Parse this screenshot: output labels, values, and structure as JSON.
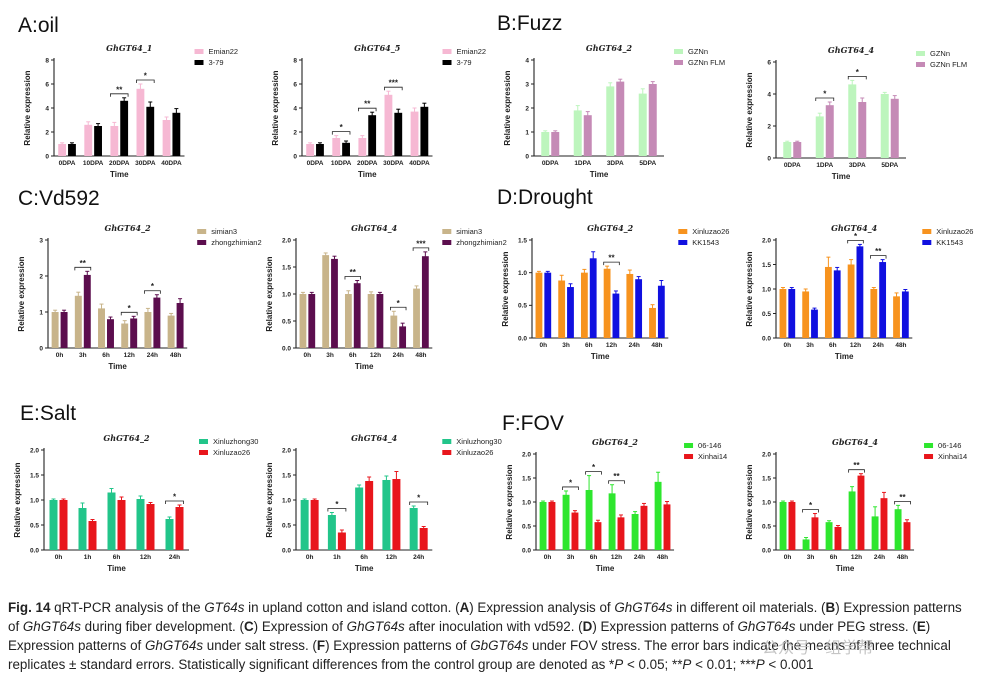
{
  "panels": [
    {
      "key": "A",
      "label": "A:oil"
    },
    {
      "key": "B",
      "label": "B:Fuzz"
    },
    {
      "key": "C",
      "label": "C:Vd592"
    },
    {
      "key": "D",
      "label": "D:Drought"
    },
    {
      "key": "E",
      "label": "E:Salt"
    },
    {
      "key": "F",
      "label": "F:FOV"
    }
  ],
  "colors": {
    "A_s1": "#F6B8D3",
    "A_s2": "#000000",
    "B_s1": "#BDF5BD",
    "B_s2": "#C58AB6",
    "C_s1": "#C8B48A",
    "C_s2": "#5C0E4E",
    "D_s1": "#F7931E",
    "D_s2": "#1010E0",
    "E_s1": "#22C58A",
    "E_s2": "#E8161C",
    "F_s1": "#2EE62E",
    "F_s2": "#E8161C"
  },
  "chart_data": [
    {
      "id": "A1",
      "type": "bar",
      "title": "GhGT64_1",
      "xlabel": "Time",
      "ylabel": "Relative expression",
      "ylim": [
        0,
        8
      ],
      "yticks": [
        "0",
        "2",
        "4",
        "6",
        "8"
      ],
      "categories": [
        "0DPA",
        "10DPA",
        "20DPA",
        "30DPA",
        "40DPA"
      ],
      "series": [
        {
          "name": "Emian22",
          "values": [
            1.0,
            2.6,
            2.5,
            5.6,
            3.0
          ],
          "errors": [
            0.1,
            0.25,
            0.3,
            0.4,
            0.25
          ]
        },
        {
          "name": "3-79",
          "values": [
            1.0,
            2.5,
            4.6,
            4.1,
            3.6
          ],
          "errors": [
            0.1,
            0.2,
            0.25,
            0.4,
            0.35
          ]
        }
      ],
      "significance": [
        {
          "cat": 2,
          "label": "**"
        },
        {
          "cat": 3,
          "label": "*"
        }
      ]
    },
    {
      "id": "A2",
      "type": "bar",
      "title": "GhGT64_5",
      "xlabel": "Time",
      "ylabel": "Relative expression",
      "ylim": [
        0,
        8
      ],
      "yticks": [
        "0",
        "2",
        "4",
        "6",
        "8"
      ],
      "categories": [
        "0DPA",
        "10DPA",
        "20DPA",
        "30DPA",
        "40DPA"
      ],
      "series": [
        {
          "name": "Emian22",
          "values": [
            1.0,
            1.5,
            1.5,
            5.1,
            3.7
          ],
          "errors": [
            0.1,
            0.2,
            0.2,
            0.3,
            0.3
          ]
        },
        {
          "name": "3-79",
          "values": [
            1.0,
            1.1,
            3.4,
            3.6,
            4.1
          ],
          "errors": [
            0.1,
            0.15,
            0.25,
            0.3,
            0.3
          ]
        }
      ],
      "significance": [
        {
          "cat": 1,
          "label": "*"
        },
        {
          "cat": 2,
          "label": "**"
        },
        {
          "cat": 3,
          "label": "***"
        }
      ]
    },
    {
      "id": "B1",
      "type": "bar",
      "title": "GhGT64_2",
      "xlabel": "Time",
      "ylabel": "Relative expression",
      "ylim": [
        0,
        4
      ],
      "yticks": [
        "0",
        "1",
        "2",
        "3",
        "4"
      ],
      "categories": [
        "0DPA",
        "1DPA",
        "3DPA",
        "5DPA"
      ],
      "series": [
        {
          "name": "GZNn",
          "values": [
            1.0,
            1.9,
            2.9,
            2.6
          ],
          "errors": [
            0.05,
            0.2,
            0.15,
            0.2
          ]
        },
        {
          "name": "GZNn FLM",
          "values": [
            1.0,
            1.7,
            3.1,
            3.0
          ],
          "errors": [
            0.05,
            0.15,
            0.1,
            0.1
          ]
        }
      ],
      "significance": []
    },
    {
      "id": "B2",
      "type": "bar",
      "title": "GhGT64_4",
      "xlabel": "Time",
      "ylabel": "Relative expression",
      "ylim": [
        0,
        6
      ],
      "yticks": [
        "0",
        "2",
        "4",
        "6"
      ],
      "categories": [
        "0DPA",
        "1DPA",
        "3DPA",
        "5DPA"
      ],
      "series": [
        {
          "name": "GZNn",
          "values": [
            1.0,
            2.6,
            4.6,
            4.0
          ],
          "errors": [
            0.05,
            0.2,
            0.25,
            0.1
          ]
        },
        {
          "name": "GZNn FLM",
          "values": [
            1.0,
            3.3,
            3.5,
            3.7
          ],
          "errors": [
            0.05,
            0.2,
            0.25,
            0.2
          ]
        }
      ],
      "significance": [
        {
          "cat": 1,
          "label": "*"
        },
        {
          "cat": 2,
          "label": "*"
        }
      ]
    },
    {
      "id": "C1",
      "type": "bar",
      "title": "GhGT64_2",
      "xlabel": "Time",
      "ylabel": "Relative expression",
      "ylim": [
        0,
        3
      ],
      "yticks": [
        "0",
        "1",
        "2",
        "3"
      ],
      "categories": [
        "0h",
        "3h",
        "6h",
        "12h",
        "24h",
        "48h"
      ],
      "series": [
        {
          "name": "simian3",
          "values": [
            1.0,
            1.45,
            1.1,
            0.68,
            1.0,
            0.9
          ],
          "errors": [
            0.05,
            0.1,
            0.12,
            0.08,
            0.1,
            0.06
          ]
        },
        {
          "name": "zhongzhimian2",
          "values": [
            1.0,
            2.03,
            0.8,
            0.82,
            1.4,
            1.25
          ],
          "errors": [
            0.05,
            0.1,
            0.06,
            0.06,
            0.08,
            0.12
          ]
        }
      ],
      "significance": [
        {
          "cat": 1,
          "label": "**"
        },
        {
          "cat": 3,
          "label": "*"
        },
        {
          "cat": 4,
          "label": "*"
        }
      ]
    },
    {
      "id": "C2",
      "type": "bar",
      "title": "GhGT64_4",
      "xlabel": "Time",
      "ylabel": "Relative expression",
      "ylim": [
        0,
        2.0
      ],
      "yticks": [
        "0.0",
        "0.5",
        "1.0",
        "1.5",
        "2.0"
      ],
      "categories": [
        "0h",
        "3h",
        "6h",
        "12h",
        "24h",
        "48h"
      ],
      "series": [
        {
          "name": "simian3",
          "values": [
            1.0,
            1.72,
            1.0,
            1.0,
            0.6,
            1.1
          ],
          "errors": [
            0.03,
            0.04,
            0.06,
            0.04,
            0.08,
            0.05
          ]
        },
        {
          "name": "zhongzhimian2",
          "values": [
            1.0,
            1.65,
            1.2,
            1.0,
            0.4,
            1.7
          ],
          "errors": [
            0.03,
            0.05,
            0.05,
            0.03,
            0.06,
            0.08
          ]
        }
      ],
      "significance": [
        {
          "cat": 2,
          "label": "**"
        },
        {
          "cat": 4,
          "label": "*"
        },
        {
          "cat": 5,
          "label": "***"
        }
      ]
    },
    {
      "id": "D1",
      "type": "bar",
      "title": "GhGT64_2",
      "xlabel": "Time",
      "ylabel": "Relative expression",
      "ylim": [
        0,
        1.5
      ],
      "yticks": [
        "0.0",
        "0.5",
        "1.0",
        "1.5"
      ],
      "categories": [
        "0h",
        "3h",
        "6h",
        "12h",
        "24h",
        "48h"
      ],
      "series": [
        {
          "name": "Xinluzao26",
          "values": [
            1.0,
            0.88,
            1.0,
            1.06,
            0.98,
            0.46
          ],
          "errors": [
            0.02,
            0.08,
            0.05,
            0.04,
            0.06,
            0.05
          ]
        },
        {
          "name": "KK1543",
          "values": [
            1.0,
            0.78,
            1.22,
            0.68,
            0.9,
            0.8
          ],
          "errors": [
            0.02,
            0.05,
            0.1,
            0.04,
            0.04,
            0.08
          ]
        }
      ],
      "significance": [
        {
          "cat": 3,
          "label": "**"
        }
      ]
    },
    {
      "id": "D2",
      "type": "bar",
      "title": "GhGT64_4",
      "xlabel": "Time",
      "ylabel": "Relative expression",
      "ylim": [
        0,
        2.0
      ],
      "yticks": [
        "0.0",
        "0.5",
        "1.0",
        "1.5",
        "2.0"
      ],
      "categories": [
        "0h",
        "3h",
        "6h",
        "12h",
        "24h",
        "48h"
      ],
      "series": [
        {
          "name": "Xinluzao26",
          "values": [
            1.0,
            0.95,
            1.45,
            1.5,
            1.0,
            0.85
          ],
          "errors": [
            0.03,
            0.05,
            0.2,
            0.1,
            0.03,
            0.07
          ]
        },
        {
          "name": "KK1543",
          "values": [
            1.0,
            0.58,
            1.38,
            1.87,
            1.55,
            0.95
          ],
          "errors": [
            0.03,
            0.03,
            0.06,
            0.04,
            0.05,
            0.04
          ]
        }
      ],
      "significance": [
        {
          "cat": 3,
          "label": "*"
        },
        {
          "cat": 4,
          "label": "**"
        }
      ]
    },
    {
      "id": "E1",
      "type": "bar",
      "title": "GhGT64_2",
      "xlabel": "Time",
      "ylabel": "Relative expression",
      "ylim": [
        0,
        2.0
      ],
      "yticks": [
        "0.0",
        "0.5",
        "1.0",
        "1.5",
        "2.0"
      ],
      "categories": [
        "0h",
        "1h",
        "6h",
        "12h",
        "24h"
      ],
      "series": [
        {
          "name": "Xinluzhong30",
          "values": [
            1.0,
            0.84,
            1.15,
            1.02,
            0.62
          ],
          "errors": [
            0.02,
            0.1,
            0.08,
            0.06,
            0.04
          ]
        },
        {
          "name": "Xinluzao26",
          "values": [
            1.0,
            0.58,
            1.0,
            0.92,
            0.86
          ],
          "errors": [
            0.02,
            0.03,
            0.06,
            0.03,
            0.04
          ]
        }
      ],
      "significance": [
        {
          "cat": 4,
          "label": "*"
        }
      ]
    },
    {
      "id": "E2",
      "type": "bar",
      "title": "GhGT64_4",
      "xlabel": "Time",
      "ylabel": "Relative expression",
      "ylim": [
        0,
        2.0
      ],
      "yticks": [
        "0.0",
        "0.5",
        "1.0",
        "1.5",
        "2.0"
      ],
      "categories": [
        "0h",
        "1h",
        "6h",
        "12h",
        "24h"
      ],
      "series": [
        {
          "name": "Xinluzhong30",
          "values": [
            1.0,
            0.7,
            1.25,
            1.4,
            0.84
          ],
          "errors": [
            0.02,
            0.05,
            0.05,
            0.08,
            0.04
          ]
        },
        {
          "name": "Xinluzao26",
          "values": [
            1.0,
            0.35,
            1.38,
            1.42,
            0.44
          ],
          "errors": [
            0.02,
            0.05,
            0.08,
            0.15,
            0.03
          ]
        }
      ],
      "significance": [
        {
          "cat": 1,
          "label": "*"
        },
        {
          "cat": 4,
          "label": "*"
        }
      ]
    },
    {
      "id": "F1",
      "type": "bar",
      "title": "GbGT64_2",
      "xlabel": "Time",
      "ylabel": "Relative expression",
      "ylim": [
        0,
        2.0
      ],
      "yticks": [
        "0.0",
        "0.5",
        "1.0",
        "1.5",
        "2.0"
      ],
      "categories": [
        "0h",
        "3h",
        "6h",
        "12h",
        "24h",
        "48h"
      ],
      "series": [
        {
          "name": "06-146",
          "values": [
            1.0,
            1.15,
            1.25,
            1.18,
            0.75,
            1.42
          ],
          "errors": [
            0.02,
            0.08,
            0.3,
            0.18,
            0.05,
            0.2
          ]
        },
        {
          "name": "Xinhai14",
          "values": [
            1.0,
            0.78,
            0.58,
            0.68,
            0.92,
            0.95
          ],
          "errors": [
            0.02,
            0.04,
            0.04,
            0.05,
            0.05,
            0.06
          ]
        }
      ],
      "significance": [
        {
          "cat": 1,
          "label": "*"
        },
        {
          "cat": 2,
          "label": "*"
        },
        {
          "cat": 3,
          "label": "**"
        }
      ]
    },
    {
      "id": "F2",
      "type": "bar",
      "title": "GbGT64_4",
      "xlabel": "Time",
      "ylabel": "Relative expression",
      "ylim": [
        0,
        2.0
      ],
      "yticks": [
        "0.0",
        "0.5",
        "1.0",
        "1.5",
        "2.0"
      ],
      "categories": [
        "0h",
        "3h",
        "6h",
        "12h",
        "24h",
        "48h"
      ],
      "series": [
        {
          "name": "06-146",
          "values": [
            1.0,
            0.22,
            0.58,
            1.22,
            0.7,
            0.85
          ],
          "errors": [
            0.02,
            0.04,
            0.03,
            0.1,
            0.2,
            0.08
          ]
        },
        {
          "name": "Xinhai14",
          "values": [
            1.0,
            0.68,
            0.48,
            1.55,
            1.08,
            0.58
          ],
          "errors": [
            0.02,
            0.08,
            0.03,
            0.04,
            0.12,
            0.05
          ]
        }
      ],
      "significance": [
        {
          "cat": 1,
          "label": "*"
        },
        {
          "cat": 3,
          "label": "**"
        },
        {
          "cat": 5,
          "label": "**"
        }
      ]
    }
  ],
  "caption": {
    "fig_label": "Fig. 14",
    "parts": [
      " qRT-PCR analysis of the ",
      "GT64s",
      " in upland cotton and island cotton. (",
      "A",
      ") Expression analysis of ",
      "GhGT64s",
      " in different oil materials. (",
      "B",
      ") Expression patterns of ",
      "GhGT64s",
      " during fiber development. (",
      "C",
      ") Expression of ",
      "GhGT64s",
      " after inoculation with vd592. (",
      "D",
      ") Expression patterns of ",
      "GhGT64s",
      " under PEG stress. (",
      "E",
      ") Expression patterns of ",
      "GhGT64s",
      " under salt stress. (",
      "F",
      ") Expression patterns of ",
      "GbGT64s",
      " under FOV stress. The error bars indicate the means of three technical replicates ± standard errors. Statistically significant differences from the control group are denoted as *",
      "P",
      " < 0.05; **",
      "P",
      " < 0.01; ***",
      "P",
      " < 0.001"
    ]
  },
  "watermark": "公众号 · 组学帮"
}
